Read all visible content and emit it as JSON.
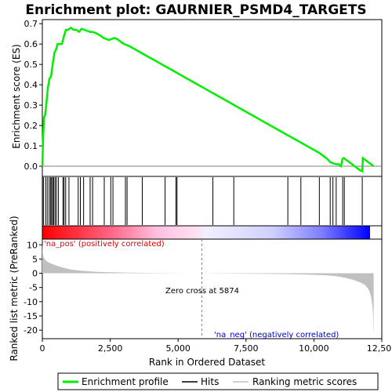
{
  "chart_data": {
    "type": "line",
    "title": "Enrichment plot: GAURNIER_PSMD4_TARGETS",
    "xlabel": "Rank in Ordered Dataset",
    "top_panel": {
      "ylabel": "Enrichment score (ES)",
      "ylim": [
        -0.05,
        0.72
      ],
      "yticks": [
        0.0,
        0.1,
        0.2,
        0.3,
        0.4,
        0.5,
        0.6,
        0.7
      ],
      "ytick_labels": [
        "0.0",
        "0.1",
        "0.2",
        "0.3",
        "0.4",
        "0.5",
        "0.6",
        "0.7"
      ],
      "color": "#00ee00",
      "series": [
        {
          "name": "Enrichment profile",
          "x": [
            0,
            30,
            60,
            100,
            150,
            200,
            260,
            320,
            360,
            400,
            450,
            500,
            560,
            650,
            720,
            780,
            820,
            870,
            950,
            1050,
            1150,
            1250,
            1350,
            1450,
            1550,
            1650,
            1750,
            1850,
            1950,
            2050,
            2150,
            2250,
            2350,
            2450,
            2550,
            2650,
            2750,
            2850,
            2950,
            3050,
            3200,
            3400,
            3600,
            3800,
            4000,
            4200,
            4400,
            4600,
            4800,
            5000,
            5200,
            5400,
            5600,
            5800,
            6000,
            6200,
            6400,
            6600,
            6800,
            7000,
            7200,
            7400,
            7600,
            7800,
            8000,
            8200,
            8400,
            8600,
            8800,
            9000,
            9200,
            9400,
            9600,
            9800,
            10000,
            10200,
            10400,
            10500,
            10600,
            10700,
            10800,
            10900,
            11000,
            11050,
            11100,
            11200,
            11300,
            11400,
            11500,
            11600,
            11700,
            11780,
            11800,
            11900,
            12000,
            12100,
            12200
          ],
          "values": [
            0.0,
            0.14,
            0.24,
            0.25,
            0.31,
            0.38,
            0.43,
            0.44,
            0.48,
            0.52,
            0.56,
            0.57,
            0.6,
            0.6,
            0.6,
            0.63,
            0.65,
            0.67,
            0.67,
            0.68,
            0.67,
            0.67,
            0.66,
            0.675,
            0.67,
            0.665,
            0.66,
            0.66,
            0.655,
            0.648,
            0.64,
            0.63,
            0.625,
            0.62,
            0.625,
            0.63,
            0.625,
            0.615,
            0.605,
            0.598,
            0.59,
            0.575,
            0.56,
            0.545,
            0.53,
            0.515,
            0.5,
            0.485,
            0.47,
            0.455,
            0.44,
            0.425,
            0.41,
            0.395,
            0.38,
            0.365,
            0.35,
            0.335,
            0.32,
            0.305,
            0.29,
            0.275,
            0.26,
            0.245,
            0.23,
            0.215,
            0.2,
            0.185,
            0.17,
            0.155,
            0.14,
            0.125,
            0.11,
            0.095,
            0.08,
            0.065,
            0.045,
            0.035,
            0.02,
            0.015,
            0.01,
            0.01,
            0.0,
            0.035,
            0.04,
            0.03,
            0.02,
            0.01,
            0.0,
            -0.01,
            -0.02,
            -0.025,
            0.04,
            0.03,
            0.02,
            0.01,
            0.0
          ]
        }
      ]
    },
    "hits": [
      5,
      40,
      120,
      180,
      250,
      300,
      340,
      380,
      420,
      470,
      520,
      590,
      760,
      800,
      860,
      980,
      1320,
      1400,
      1520,
      1760,
      1850,
      2280,
      2520,
      2600,
      3060,
      3120,
      3680,
      4520,
      4920,
      4960,
      6280,
      7050,
      9040,
      9520,
      10200,
      10600,
      10700,
      10820,
      11060,
      11120,
      11780
    ],
    "middle_panel": {
      "gradient": "red-to-blue ranking color bar",
      "positive_color": "#ff0000",
      "negative_color": "#0000ff"
    },
    "bottom_panel": {
      "ylabel": "Ranked list metric (PreRanked)",
      "ylim": [
        -23,
        12
      ],
      "yticks": [
        10,
        5,
        0,
        -5,
        -10,
        -15,
        -20
      ],
      "ytick_labels": [
        "10",
        "5",
        "0",
        "-5",
        "-10",
        "-15",
        "-20"
      ],
      "fill_color": "#c0c0c0",
      "x": [
        0,
        20,
        50,
        100,
        150,
        200,
        300,
        400,
        500,
        600,
        800,
        1000,
        1300,
        1600,
        2000,
        2500,
        3000,
        3500,
        4000,
        4500,
        5000,
        5500,
        5874,
        6500,
        7000,
        7500,
        8000,
        8500,
        9000,
        9500,
        10000,
        10500,
        10800,
        11000,
        11200,
        11400,
        11600,
        11800,
        11900,
        12000,
        12050,
        12100,
        12150,
        12180,
        12200
      ],
      "values": [
        10.5,
        7,
        5.5,
        4.8,
        4.3,
        4.0,
        3.5,
        3.1,
        2.8,
        2.4,
        1.9,
        1.4,
        1.0,
        0.75,
        0.5,
        0.35,
        0.25,
        0.18,
        0.12,
        0.08,
        0.05,
        0.02,
        0.0,
        -0.05,
        -0.1,
        -0.15,
        -0.2,
        -0.25,
        -0.3,
        -0.4,
        -0.55,
        -0.75,
        -1.0,
        -1.3,
        -1.7,
        -2.2,
        -2.8,
        -3.6,
        -4.3,
        -5.5,
        -6.5,
        -8.0,
        -11.0,
        -15.0,
        -22.5
      ]
    },
    "xlim": [
      0,
      12500
    ],
    "xticks": [
      0,
      2500,
      5000,
      7500,
      10000,
      12500
    ],
    "xtick_labels": [
      "0",
      "2,500",
      "5,000",
      "7,500",
      "10,000",
      "12,500"
    ],
    "zero_cross": 5874,
    "annotations": {
      "pos_label": "'na_pos' (positively correlated)",
      "neg_label": "'na_neg' (negatively correlated)",
      "zero_label": "Zero cross at 5874"
    },
    "legend": [
      {
        "label": "Enrichment profile",
        "color": "#00ee00"
      },
      {
        "label": "Hits",
        "color": "#000000"
      },
      {
        "label": "Ranking metric scores",
        "color": "#c0c0c0"
      }
    ]
  }
}
